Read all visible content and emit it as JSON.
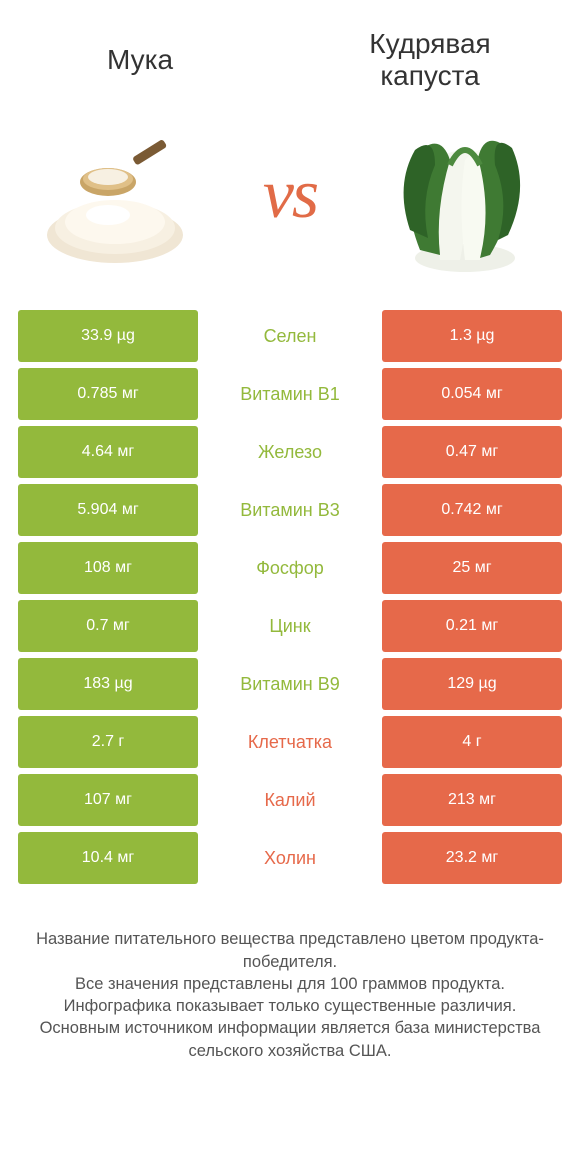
{
  "colors": {
    "green": "#93b93c",
    "orange": "#e6694a",
    "vs": "#e16b47",
    "title": "#333333",
    "footer": "#555555",
    "bg": "#ffffff"
  },
  "header": {
    "left_title": "Мука",
    "right_title": "Кудрявая капуста",
    "vs_label": "vs"
  },
  "rows": [
    {
      "label": "Селен",
      "left": "33.9 µg",
      "right": "1.3 µg",
      "winner": "left"
    },
    {
      "label": "Витамин B1",
      "left": "0.785 мг",
      "right": "0.054 мг",
      "winner": "left"
    },
    {
      "label": "Железо",
      "left": "4.64 мг",
      "right": "0.47 мг",
      "winner": "left"
    },
    {
      "label": "Витамин B3",
      "left": "5.904 мг",
      "right": "0.742 мг",
      "winner": "left"
    },
    {
      "label": "Фосфор",
      "left": "108 мг",
      "right": "25 мг",
      "winner": "left"
    },
    {
      "label": "Цинк",
      "left": "0.7 мг",
      "right": "0.21 мг",
      "winner": "left"
    },
    {
      "label": "Витамин B9",
      "left": "183 µg",
      "right": "129 µg",
      "winner": "left"
    },
    {
      "label": "Клетчатка",
      "left": "2.7 г",
      "right": "4 г",
      "winner": "right"
    },
    {
      "label": "Калий",
      "left": "107 мг",
      "right": "213 мг",
      "winner": "right"
    },
    {
      "label": "Холин",
      "left": "10.4 мг",
      "right": "23.2 мг",
      "winner": "right"
    }
  ],
  "footer": {
    "line1": "Название питательного вещества представлено цветом продукта-победителя.",
    "line2": "Все значения представлены для 100 граммов продукта.",
    "line3": "Инфографика показывает только существенные различия.",
    "line4": "Основным источником информации является база министерства сельского хозяйства США."
  }
}
